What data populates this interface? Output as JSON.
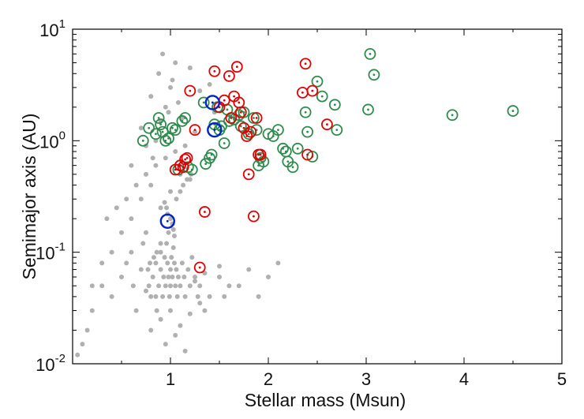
{
  "chart_data": {
    "type": "scatter",
    "title": "",
    "xlabel": "Stellar mass (Msun)",
    "ylabel": "Semimajor axis (AU)",
    "xlim": [
      0,
      5
    ],
    "ylim": [
      0.01,
      10
    ],
    "yscale": "log",
    "grid": false,
    "x_ticks": [
      {
        "value": 1,
        "label": "1"
      },
      {
        "value": 2,
        "label": "2"
      },
      {
        "value": 3,
        "label": "3"
      },
      {
        "value": 4,
        "label": "4"
      },
      {
        "value": 5,
        "label": "5"
      }
    ],
    "y_ticks": [
      {
        "value": 0.01,
        "base": "10",
        "exp": "-2"
      },
      {
        "value": 0.1,
        "base": "10",
        "exp": "-1"
      },
      {
        "value": 1,
        "base": "10",
        "exp": "0"
      },
      {
        "value": 10,
        "base": "10",
        "exp": "1"
      }
    ],
    "series": [
      {
        "color": "#b0b0b0",
        "marker": "filled-dot",
        "x": [
          0.05,
          0.1,
          0.15,
          0.2,
          0.3,
          0.4,
          0.5,
          0.55,
          0.6,
          0.62,
          0.65,
          0.7,
          0.72,
          0.75,
          0.78,
          0.8,
          0.82,
          0.85,
          0.86,
          0.88,
          0.9,
          0.9,
          0.92,
          0.93,
          0.94,
          0.95,
          0.96,
          0.97,
          0.98,
          0.99,
          1.0,
          1.0,
          1.01,
          1.02,
          1.03,
          1.04,
          1.05,
          1.06,
          1.07,
          1.08,
          1.1,
          1.12,
          1.14,
          1.15,
          1.18,
          1.2,
          1.22,
          1.25,
          1.28,
          1.3,
          1.35,
          1.4,
          1.5,
          1.6,
          0.6,
          0.7,
          0.8,
          0.9,
          1.0,
          1.1,
          1.2,
          0.5,
          0.4,
          0.3,
          0.2,
          0.35,
          0.45,
          0.55,
          0.65,
          0.75,
          0.85,
          0.95,
          1.05,
          1.15,
          1.25,
          0.85,
          0.9,
          0.95,
          1.0,
          1.05,
          0.8,
          0.88,
          0.92,
          0.98,
          1.02,
          1.08,
          1.12,
          0.7,
          0.75,
          0.82,
          0.6,
          1.3,
          1.4,
          1.45,
          1.2,
          0.8,
          0.9,
          1.0,
          1.1,
          1.2,
          1.3,
          0.95,
          1.05,
          1.15,
          0.85,
          0.75,
          1.25,
          1.35,
          1.5,
          1.55,
          1.7,
          1.8,
          2.0,
          2.1,
          1.9,
          0.98,
          1.0,
          1.02,
          0.97,
          1.03,
          0.96,
          1.04,
          0.94,
          1.06,
          1.1,
          1.13,
          1.17,
          1.21,
          0.9,
          0.86,
          0.83,
          0.79,
          0.77
        ],
        "y": [
          0.012,
          0.015,
          0.02,
          0.03,
          0.05,
          0.04,
          0.06,
          0.08,
          0.1,
          0.05,
          0.03,
          0.07,
          0.12,
          0.15,
          0.05,
          0.04,
          0.06,
          0.08,
          0.03,
          0.05,
          0.07,
          0.1,
          0.04,
          0.06,
          0.09,
          0.05,
          0.12,
          0.08,
          0.06,
          0.04,
          0.05,
          0.07,
          0.09,
          0.06,
          0.11,
          0.08,
          0.05,
          0.07,
          0.04,
          0.06,
          0.05,
          0.08,
          0.06,
          0.04,
          0.07,
          0.05,
          0.09,
          0.06,
          0.04,
          0.05,
          0.03,
          0.04,
          0.06,
          0.05,
          0.2,
          0.3,
          0.4,
          0.25,
          0.35,
          0.5,
          0.45,
          0.15,
          0.1,
          0.08,
          0.05,
          0.2,
          0.25,
          0.3,
          0.4,
          0.5,
          0.6,
          0.7,
          0.8,
          0.9,
          1.2,
          1.0,
          1.5,
          2.0,
          3.0,
          5.0,
          2.5,
          4.0,
          6.0,
          1.8,
          3.5,
          2.2,
          1.6,
          1.3,
          0.9,
          0.7,
          0.6,
          2.8,
          3.2,
          1.8,
          4.5,
          0.02,
          0.025,
          0.03,
          0.022,
          0.028,
          0.035,
          0.015,
          0.018,
          0.013,
          0.04,
          0.045,
          0.055,
          0.065,
          0.075,
          0.04,
          0.05,
          0.07,
          0.06,
          0.08,
          0.04,
          0.15,
          0.2,
          0.18,
          0.22,
          0.16,
          0.25,
          0.14,
          0.28,
          0.3,
          0.35,
          0.4,
          0.45,
          0.5,
          0.12,
          0.1,
          0.09,
          0.08,
          0.07
        ]
      },
      {
        "color": "#2e8b4e",
        "marker": "open-circle-dot",
        "x": [
          0.72,
          0.78,
          0.85,
          0.88,
          0.9,
          0.92,
          0.95,
          0.98,
          1.02,
          1.05,
          1.08,
          1.1,
          1.12,
          1.15,
          1.18,
          1.22,
          1.34,
          1.36,
          1.4,
          1.42,
          1.45,
          1.48,
          1.5,
          1.52,
          1.55,
          1.58,
          1.6,
          1.65,
          1.7,
          1.72,
          1.75,
          1.8,
          1.85,
          1.88,
          1.9,
          1.92,
          1.95,
          2.0,
          2.05,
          2.1,
          2.15,
          2.18,
          2.2,
          2.25,
          2.3,
          2.38,
          2.4,
          2.45,
          2.5,
          2.55,
          2.68,
          2.7,
          3.02,
          3.04,
          3.08,
          3.88,
          4.5
        ],
        "y": [
          1.0,
          1.3,
          1.15,
          1.6,
          1.4,
          1.2,
          1.0,
          1.05,
          1.3,
          1.25,
          0.55,
          0.6,
          1.5,
          1.6,
          0.58,
          0.55,
          2.2,
          0.62,
          0.7,
          0.75,
          1.4,
          2.0,
          1.25,
          1.35,
          0.95,
          1.9,
          1.5,
          1.55,
          1.7,
          1.35,
          1.8,
          1.15,
          1.6,
          1.25,
          0.6,
          0.7,
          0.65,
          1.15,
          1.1,
          1.25,
          0.85,
          0.8,
          0.65,
          0.58,
          0.85,
          1.8,
          1.2,
          0.72,
          3.4,
          2.5,
          2.1,
          1.25,
          1.9,
          6.0,
          3.9,
          1.7,
          1.85
        ]
      },
      {
        "color": "#e00000",
        "marker": "open-circle-dot",
        "x": [
          1.05,
          1.1,
          1.13,
          1.15,
          1.17,
          1.2,
          1.25,
          1.3,
          1.35,
          1.45,
          1.5,
          1.55,
          1.6,
          1.62,
          1.65,
          1.68,
          1.7,
          1.72,
          1.75,
          1.78,
          1.8,
          1.82,
          1.85,
          1.88,
          1.9,
          1.92,
          2.35,
          2.38,
          2.4,
          2.45,
          2.6
        ],
        "y": [
          0.55,
          0.6,
          0.58,
          0.68,
          0.7,
          2.8,
          1.25,
          0.073,
          0.23,
          4.2,
          2.0,
          2.3,
          3.8,
          1.6,
          2.5,
          4.6,
          2.2,
          1.8,
          1.3,
          1.1,
          0.5,
          1.2,
          0.21,
          1.6,
          0.75,
          0.75,
          2.7,
          4.9,
          0.75,
          2.8,
          1.4
        ]
      },
      {
        "color": "#0022cc",
        "marker": "open-circle-dot-large",
        "x": [
          0.97,
          1.43,
          1.45
        ],
        "y": [
          0.19,
          2.2,
          1.25
        ]
      }
    ]
  }
}
